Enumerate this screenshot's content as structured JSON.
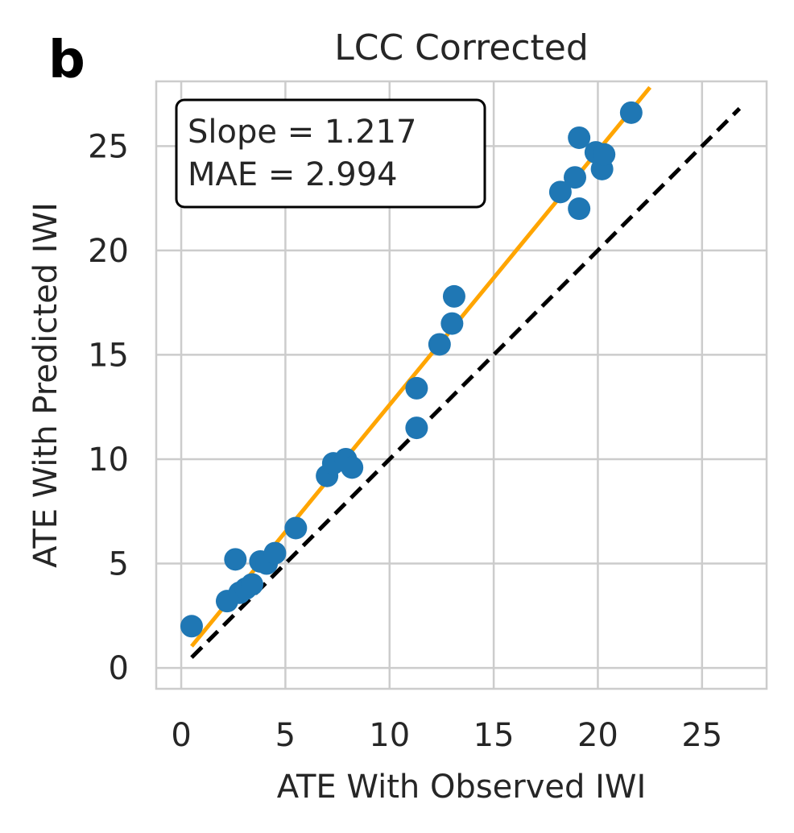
{
  "panel_label": "b",
  "chart_data": {
    "type": "scatter",
    "title": "LCC Corrected",
    "xlabel": "ATE With Observed IWI",
    "ylabel": "ATE With Predicted IWI",
    "xlim": [
      -1.2,
      28.1
    ],
    "ylim": [
      -1.0,
      28.1
    ],
    "xticks": [
      0,
      5,
      10,
      15,
      20,
      25
    ],
    "yticks": [
      0,
      5,
      10,
      15,
      20,
      25
    ],
    "grid": true,
    "annotation": {
      "lines": [
        "Slope = 1.217",
        "MAE = 2.994"
      ],
      "placement": "top-left"
    },
    "points": [
      {
        "x": 0.5,
        "y": 2.0
      },
      {
        "x": 2.2,
        "y": 3.2
      },
      {
        "x": 2.6,
        "y": 5.2
      },
      {
        "x": 2.8,
        "y": 3.6
      },
      {
        "x": 3.1,
        "y": 3.8
      },
      {
        "x": 3.4,
        "y": 4.0
      },
      {
        "x": 3.8,
        "y": 5.1
      },
      {
        "x": 4.1,
        "y": 5.0
      },
      {
        "x": 4.5,
        "y": 5.5
      },
      {
        "x": 5.5,
        "y": 6.7
      },
      {
        "x": 7.0,
        "y": 9.2
      },
      {
        "x": 7.3,
        "y": 9.8
      },
      {
        "x": 7.9,
        "y": 10.0
      },
      {
        "x": 8.2,
        "y": 9.6
      },
      {
        "x": 11.3,
        "y": 13.4
      },
      {
        "x": 11.3,
        "y": 11.5
      },
      {
        "x": 12.4,
        "y": 15.5
      },
      {
        "x": 13.0,
        "y": 16.5
      },
      {
        "x": 13.1,
        "y": 17.8
      },
      {
        "x": 18.2,
        "y": 22.8
      },
      {
        "x": 18.9,
        "y": 23.5
      },
      {
        "x": 19.1,
        "y": 22.0
      },
      {
        "x": 19.1,
        "y": 25.4
      },
      {
        "x": 19.9,
        "y": 24.7
      },
      {
        "x": 20.2,
        "y": 23.9
      },
      {
        "x": 20.3,
        "y": 24.6
      },
      {
        "x": 21.6,
        "y": 26.6
      }
    ],
    "fit_line": {
      "slope": 1.217,
      "intercept": 0.43,
      "x_range": [
        0.5,
        22.5
      ],
      "color": "#ffa500"
    },
    "identity_line": {
      "x_range": [
        0.5,
        26.8
      ],
      "color": "#000000",
      "style": "dashed"
    },
    "point_color": "#1f77b4"
  }
}
